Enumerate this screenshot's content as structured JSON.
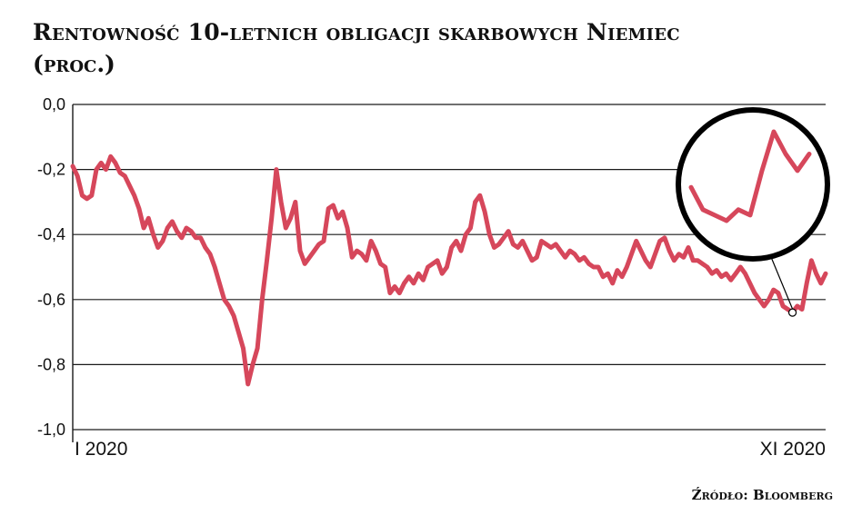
{
  "header": {
    "title": "Rentowność 10-letnich obligacji skarbowych Niemiec",
    "subtitle": "(proc.)"
  },
  "footer": {
    "source": "Źródło: Bloomberg"
  },
  "colors": {
    "line": "#d6475b",
    "grid": "#1a1a1a",
    "circle": "#000000"
  },
  "chart_data": {
    "type": "line",
    "ylim": [
      -1.0,
      0.0
    ],
    "yticks": [
      0.0,
      -0.2,
      -0.4,
      -0.6,
      -0.8,
      -1.0
    ],
    "ytick_labels": [
      "0,0",
      "-0,2",
      "-0,4",
      "-0,6",
      "-0,8",
      "-1,0"
    ],
    "xtick_labels": [
      "I 2020",
      "XI 2020"
    ],
    "grid": true,
    "annotation": "magnifier circle highlighting the late-2020 low",
    "series": [
      {
        "values": [
          -0.19,
          -0.22,
          -0.28,
          -0.29,
          -0.28,
          -0.2,
          -0.18,
          -0.2,
          -0.16,
          -0.18,
          -0.21,
          -0.22,
          -0.25,
          -0.28,
          -0.32,
          -0.38,
          -0.35,
          -0.4,
          -0.44,
          -0.42,
          -0.38,
          -0.36,
          -0.39,
          -0.41,
          -0.38,
          -0.39,
          -0.41,
          -0.41,
          -0.44,
          -0.46,
          -0.5,
          -0.55,
          -0.6,
          -0.62,
          -0.65,
          -0.7,
          -0.75,
          -0.86,
          -0.8,
          -0.75,
          -0.6,
          -0.48,
          -0.35,
          -0.2,
          -0.3,
          -0.38,
          -0.35,
          -0.3,
          -0.45,
          -0.49,
          -0.47,
          -0.45,
          -0.43,
          -0.42,
          -0.32,
          -0.31,
          -0.35,
          -0.33,
          -0.38,
          -0.47,
          -0.45,
          -0.46,
          -0.48,
          -0.42,
          -0.45,
          -0.49,
          -0.5,
          -0.58,
          -0.56,
          -0.58,
          -0.55,
          -0.53,
          -0.55,
          -0.52,
          -0.54,
          -0.5,
          -0.49,
          -0.48,
          -0.52,
          -0.5,
          -0.44,
          -0.42,
          -0.45,
          -0.4,
          -0.38,
          -0.3,
          -0.28,
          -0.33,
          -0.4,
          -0.44,
          -0.43,
          -0.41,
          -0.39,
          -0.43,
          -0.44,
          -0.42,
          -0.45,
          -0.48,
          -0.47,
          -0.42,
          -0.43,
          -0.44,
          -0.43,
          -0.45,
          -0.47,
          -0.45,
          -0.46,
          -0.48,
          -0.47,
          -0.49,
          -0.5,
          -0.5,
          -0.53,
          -0.52,
          -0.55,
          -0.51,
          -0.53,
          -0.5,
          -0.46,
          -0.42,
          -0.45,
          -0.48,
          -0.5,
          -0.46,
          -0.42,
          -0.41,
          -0.45,
          -0.48,
          -0.46,
          -0.47,
          -0.44,
          -0.48,
          -0.48,
          -0.49,
          -0.5,
          -0.52,
          -0.51,
          -0.53,
          -0.52,
          -0.54,
          -0.52,
          -0.5,
          -0.52,
          -0.55,
          -0.58,
          -0.6,
          -0.62,
          -0.6,
          -0.57,
          -0.58,
          -0.62,
          -0.63,
          -0.64,
          -0.62,
          -0.63,
          -0.55,
          -0.48,
          -0.52,
          -0.55,
          -0.52
        ]
      }
    ]
  }
}
